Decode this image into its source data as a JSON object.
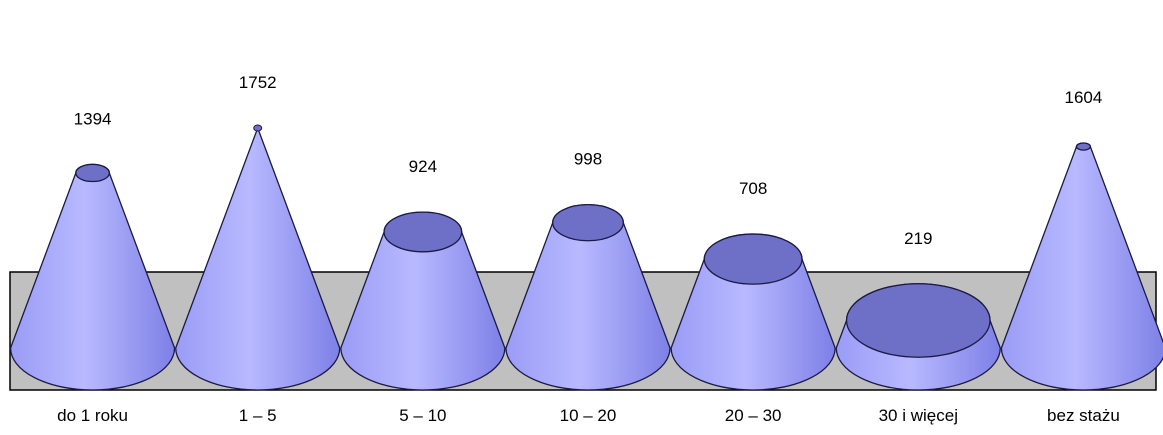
{
  "chart_data": {
    "type": "bar",
    "shape": "cone",
    "categories": [
      "do 1 roku",
      "1 – 5",
      "5 – 10",
      "10 – 20",
      "20 – 30",
      "30 i więcej",
      "bez stażu"
    ],
    "values": [
      1394,
      1752,
      924,
      998,
      708,
      219,
      1604
    ],
    "data_labels": [
      "1394",
      "1752",
      "924",
      "998",
      "708",
      "219",
      "1604"
    ],
    "title": "",
    "xlabel": "",
    "ylabel": "",
    "ylim": [
      0,
      1752
    ],
    "grid": false,
    "legend": "none",
    "colors": {
      "cone_side_light": "#b8b9ff",
      "cone_side_mid": "#9a9cf6",
      "cone_side_dark": "#7d80e6",
      "cone_top": "#6e70c8",
      "cone_outline": "#1a1a44",
      "floor_fill": "#c0c0c0",
      "floor_outline": "#000000"
    }
  }
}
